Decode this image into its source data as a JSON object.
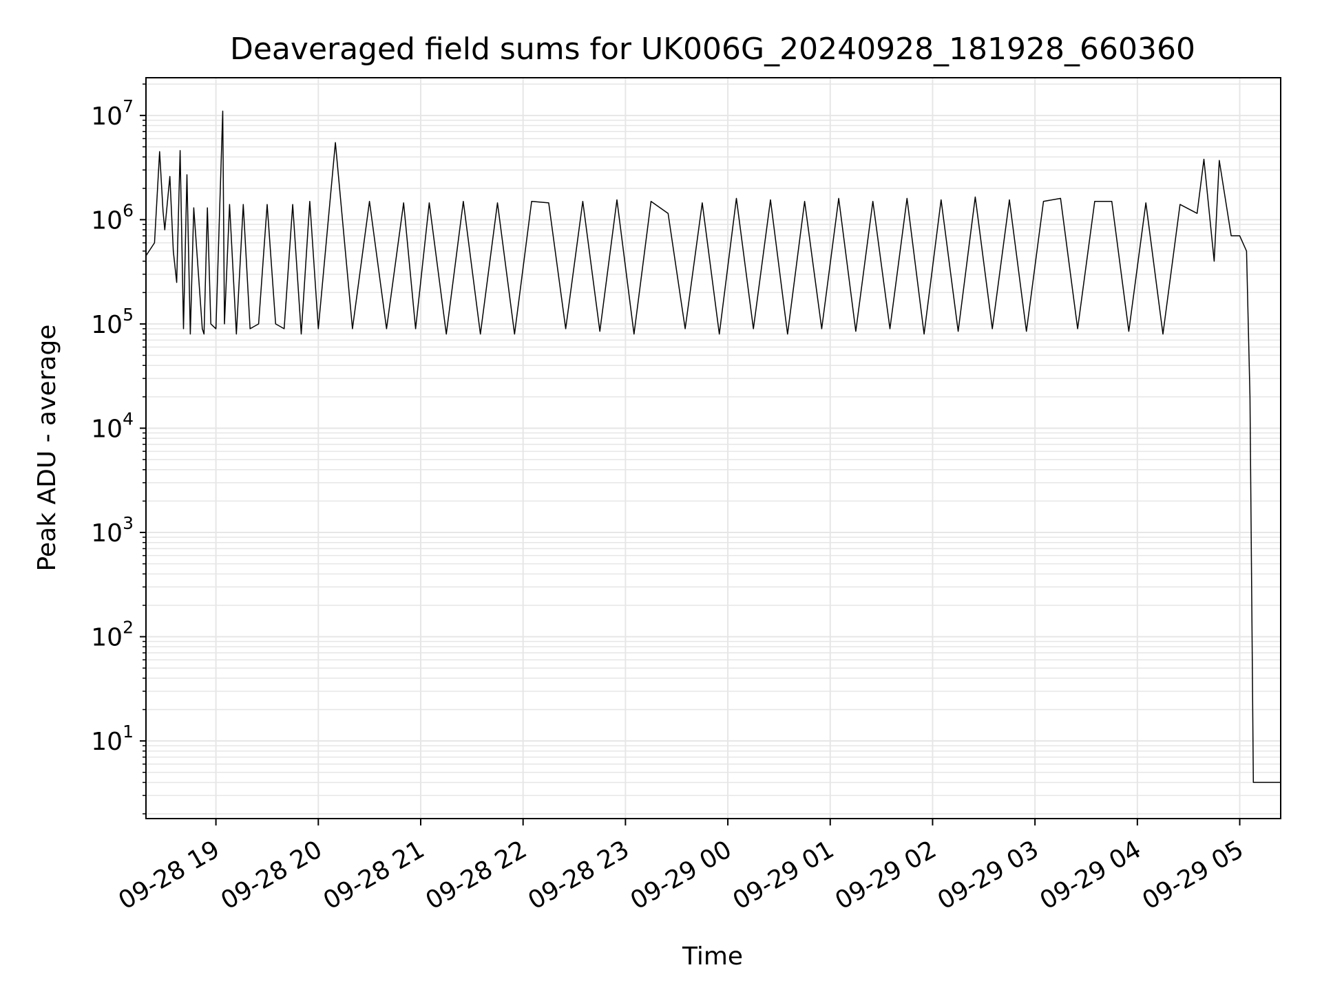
{
  "chart_data": {
    "type": "line",
    "title": "Deaveraged field sums for UK006G_20240928_181928_660360",
    "xlabel": "Time",
    "ylabel": "Peak ADU - average",
    "yscale": "log",
    "grid": true,
    "line_color": "#000000",
    "grid_color": "#e6e6e6",
    "xlim": [
      "2024-09-28 18:19",
      "2024-09-29 05:24"
    ],
    "ylim": [
      1.8,
      23000000.0
    ],
    "x_ticks": [
      {
        "time": "2024-09-28 19:00",
        "label": "09-28 19"
      },
      {
        "time": "2024-09-28 20:00",
        "label": "09-28 20"
      },
      {
        "time": "2024-09-28 21:00",
        "label": "09-28 21"
      },
      {
        "time": "2024-09-28 22:00",
        "label": "09-28 22"
      },
      {
        "time": "2024-09-28 23:00",
        "label": "09-28 23"
      },
      {
        "time": "2024-09-29 00:00",
        "label": "09-29 00"
      },
      {
        "time": "2024-09-29 01:00",
        "label": "09-29 01"
      },
      {
        "time": "2024-09-29 02:00",
        "label": "09-29 02"
      },
      {
        "time": "2024-09-29 03:00",
        "label": "09-29 03"
      },
      {
        "time": "2024-09-29 04:00",
        "label": "09-29 04"
      },
      {
        "time": "2024-09-29 05:00",
        "label": "09-29 05"
      }
    ],
    "y_ticks": [
      {
        "value": 10,
        "base": "10",
        "exp": "1"
      },
      {
        "value": 100,
        "base": "10",
        "exp": "2"
      },
      {
        "value": 1000,
        "base": "10",
        "exp": "3"
      },
      {
        "value": 10000,
        "base": "10",
        "exp": "4"
      },
      {
        "value": 100000,
        "base": "10",
        "exp": "5"
      },
      {
        "value": 1000000,
        "base": "10",
        "exp": "6"
      },
      {
        "value": 10000000,
        "base": "10",
        "exp": "7"
      }
    ],
    "series": [
      {
        "x": [
          "2024-09-28 18:19",
          "2024-09-28 18:24",
          "2024-09-28 18:27",
          "2024-09-28 18:29",
          "2024-09-28 18:30",
          "2024-09-28 18:33",
          "2024-09-28 18:35",
          "2024-09-28 18:37",
          "2024-09-28 18:39",
          "2024-09-28 18:41",
          "2024-09-28 18:43",
          "2024-09-28 18:45",
          "2024-09-28 18:47",
          "2024-09-28 18:52",
          "2024-09-28 18:53",
          "2024-09-28 18:55",
          "2024-09-28 18:57",
          "2024-09-28 19:00",
          "2024-09-28 19:04",
          "2024-09-28 19:05",
          "2024-09-28 19:08",
          "2024-09-28 19:12",
          "2024-09-28 19:16",
          "2024-09-28 19:20",
          "2024-09-28 19:25",
          "2024-09-28 19:30",
          "2024-09-28 19:35",
          "2024-09-28 19:40",
          "2024-09-28 19:45",
          "2024-09-28 19:50",
          "2024-09-28 19:55",
          "2024-09-28 20:00",
          "2024-09-28 20:10",
          "2024-09-28 20:20",
          "2024-09-28 20:30",
          "2024-09-28 20:40",
          "2024-09-28 20:50",
          "2024-09-28 20:57",
          "2024-09-28 21:05",
          "2024-09-28 21:15",
          "2024-09-28 21:25",
          "2024-09-28 21:35",
          "2024-09-28 21:45",
          "2024-09-28 21:55",
          "2024-09-28 22:05",
          "2024-09-28 22:15",
          "2024-09-28 22:25",
          "2024-09-28 22:35",
          "2024-09-28 22:45",
          "2024-09-28 22:55",
          "2024-09-28 23:05",
          "2024-09-28 23:15",
          "2024-09-28 23:25",
          "2024-09-28 23:35",
          "2024-09-28 23:45",
          "2024-09-28 23:55",
          "2024-09-29 00:05",
          "2024-09-29 00:15",
          "2024-09-29 00:25",
          "2024-09-29 00:35",
          "2024-09-29 00:45",
          "2024-09-29 00:55",
          "2024-09-29 01:05",
          "2024-09-29 01:15",
          "2024-09-29 01:25",
          "2024-09-29 01:35",
          "2024-09-29 01:45",
          "2024-09-29 01:55",
          "2024-09-29 02:05",
          "2024-09-29 02:15",
          "2024-09-29 02:25",
          "2024-09-29 02:35",
          "2024-09-29 02:45",
          "2024-09-29 02:55",
          "2024-09-29 03:05",
          "2024-09-29 03:15",
          "2024-09-29 03:25",
          "2024-09-29 03:35",
          "2024-09-29 03:45",
          "2024-09-29 03:55",
          "2024-09-29 04:05",
          "2024-09-29 04:15",
          "2024-09-29 04:25",
          "2024-09-29 04:35",
          "2024-09-29 04:39",
          "2024-09-29 04:45",
          "2024-09-29 04:48",
          "2024-09-29 04:55",
          "2024-09-29 05:00",
          "2024-09-29 05:04",
          "2024-09-29 05:06",
          "2024-09-29 05:08",
          "2024-09-29 05:10",
          "2024-09-29 05:12",
          "2024-09-29 05:24"
        ],
        "y": [
          450000,
          600000,
          4500000,
          1200000,
          800000,
          2600000,
          500000,
          250000,
          4600000,
          90000,
          2700000,
          80000,
          1300000,
          90000,
          80000,
          1300000,
          100000,
          90000,
          11000000,
          100000,
          1400000,
          80000,
          1400000,
          90000,
          100000,
          1400000,
          100000,
          90000,
          1400000,
          80000,
          1500000,
          90000,
          5500000,
          90000,
          1500000,
          90000,
          1450000,
          90000,
          1450000,
          80000,
          1500000,
          80000,
          1450000,
          80000,
          1500000,
          1450000,
          90000,
          1500000,
          85000,
          1550000,
          80000,
          1500000,
          1150000,
          90000,
          1450000,
          80000,
          1600000,
          90000,
          1550000,
          80000,
          1500000,
          90000,
          1600000,
          85000,
          1500000,
          90000,
          1600000,
          80000,
          1550000,
          85000,
          1650000,
          90000,
          1550000,
          85000,
          1500000,
          1600000,
          90000,
          1500000,
          1500000,
          85000,
          1450000,
          80000,
          1400000,
          1150000,
          3800000,
          400000,
          3700000,
          700000,
          700000,
          500000,
          20000,
          4,
          4,
          4,
          4
        ]
      }
    ]
  }
}
